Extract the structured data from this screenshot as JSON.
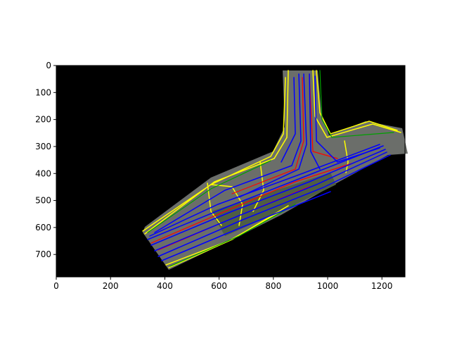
{
  "chart_data": {
    "type": "image",
    "xlim": [
      0,
      1285
    ],
    "ylim": [
      783,
      0
    ],
    "xticks": [
      0,
      200,
      400,
      600,
      800,
      1000,
      1200
    ],
    "yticks": [
      0,
      100,
      200,
      300,
      400,
      500,
      600,
      700
    ]
  }
}
